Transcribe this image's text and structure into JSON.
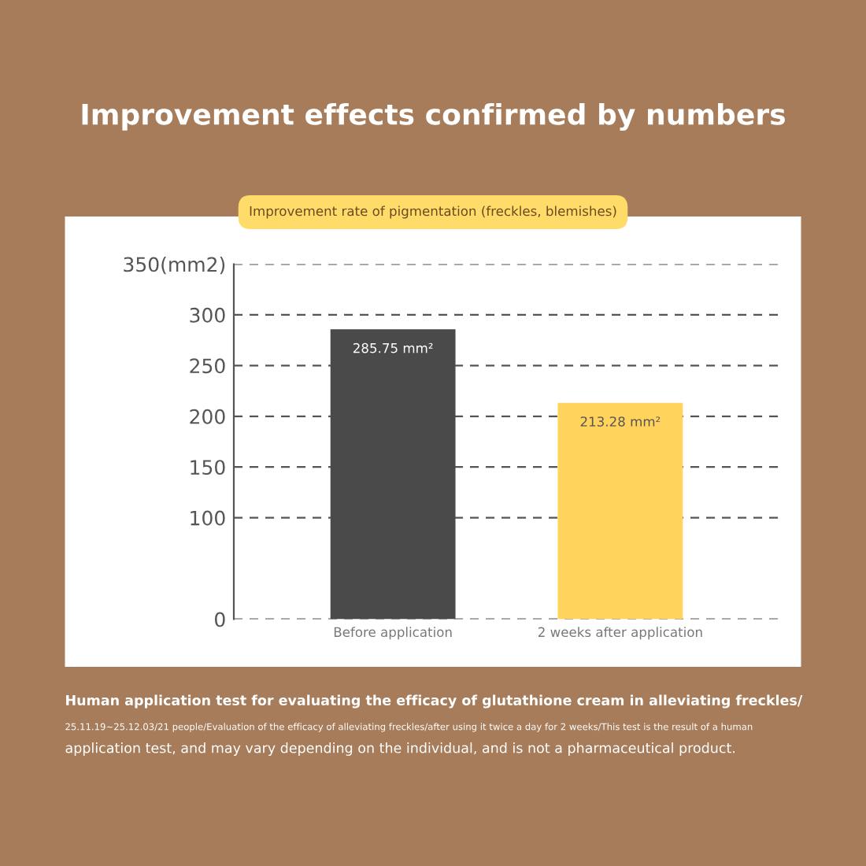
{
  "chart_data": {
    "type": "bar",
    "title": "Improvement effects confirmed by numbers",
    "subtitle": "Improvement rate of pigmentation (freckles, blemishes)",
    "categories": [
      "Before application",
      "2 weeks after application"
    ],
    "values": [
      285.75,
      213.28
    ],
    "colors": [
      "#4a4a4a",
      "#ffd35c"
    ],
    "value_labels": [
      "285.75 mm²",
      "213.28 mm²"
    ],
    "ylim": [
      0,
      350
    ],
    "yticks": [
      0,
      100,
      150,
      200,
      250,
      {
        "value": 300,
        "label": "300"
      },
      {
        "value": 350,
        "label": "350(mm2)"
      }
    ],
    "grid": "y",
    "annotations": [
      "Human application test for evaluating the efficacy of glutathione cream in alleviating freckles/",
      "25.11.19~25.12.03/21 people/Evaluation of the efficacy of alleviating freckles/after using it twice a day for 2 weeks/This test is the result of a human",
      "application test, and may vary depending on the individual, and is not a pharmaceutical product."
    ]
  }
}
